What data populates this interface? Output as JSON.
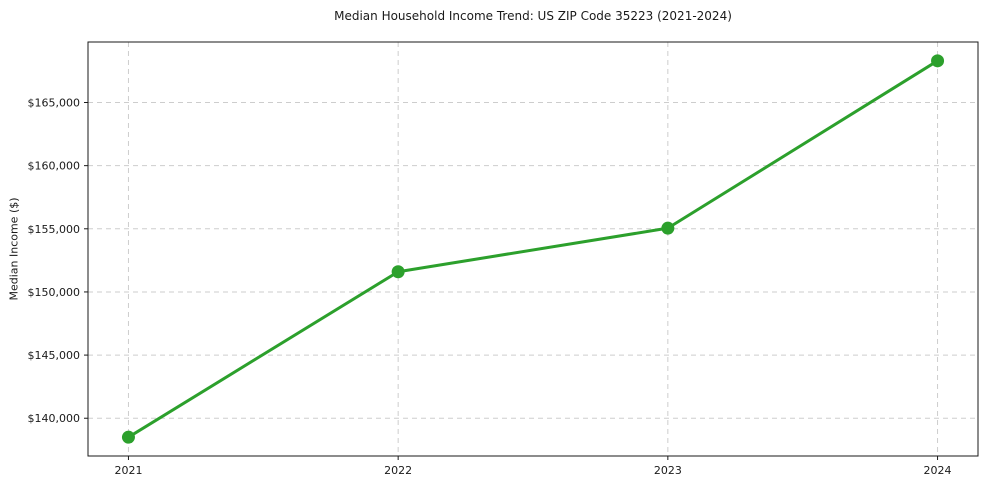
{
  "figure": {
    "title": "Median Household Income Trend: US ZIP Code 35223 (2021-2024)",
    "ylabel": "Median Income ($)"
  },
  "colors": {
    "line": "#2ca02c",
    "marker": "#2ca02c",
    "grid": "#cdcdcd",
    "spine": "#1a1a1a",
    "text": "#1a1a1a",
    "background": "#ffffff"
  },
  "chart_data": {
    "type": "line",
    "title": "Median Household Income Trend: US ZIP Code 35223 (2021-2024)",
    "xlabel": "",
    "ylabel": "Median Income ($)",
    "x": [
      2021,
      2022,
      2023,
      2024
    ],
    "values": [
      138500,
      151600,
      155050,
      168300
    ],
    "xticks": [
      2021,
      2022,
      2023,
      2024
    ],
    "xtick_labels": [
      "2021",
      "2022",
      "2023",
      "2024"
    ],
    "yticks": [
      140000,
      145000,
      150000,
      155000,
      160000,
      165000
    ],
    "ytick_labels": [
      "$140,000",
      "$145,000",
      "$150,000",
      "$155,000",
      "$160,000",
      "$165,000"
    ],
    "xlim": [
      2020.85,
      2024.15
    ],
    "ylim": [
      137010,
      169790
    ],
    "grid": true,
    "grid_style": "dashed",
    "legend": "none",
    "marker": "circle",
    "line_width": 3,
    "marker_radius": 6.5
  }
}
